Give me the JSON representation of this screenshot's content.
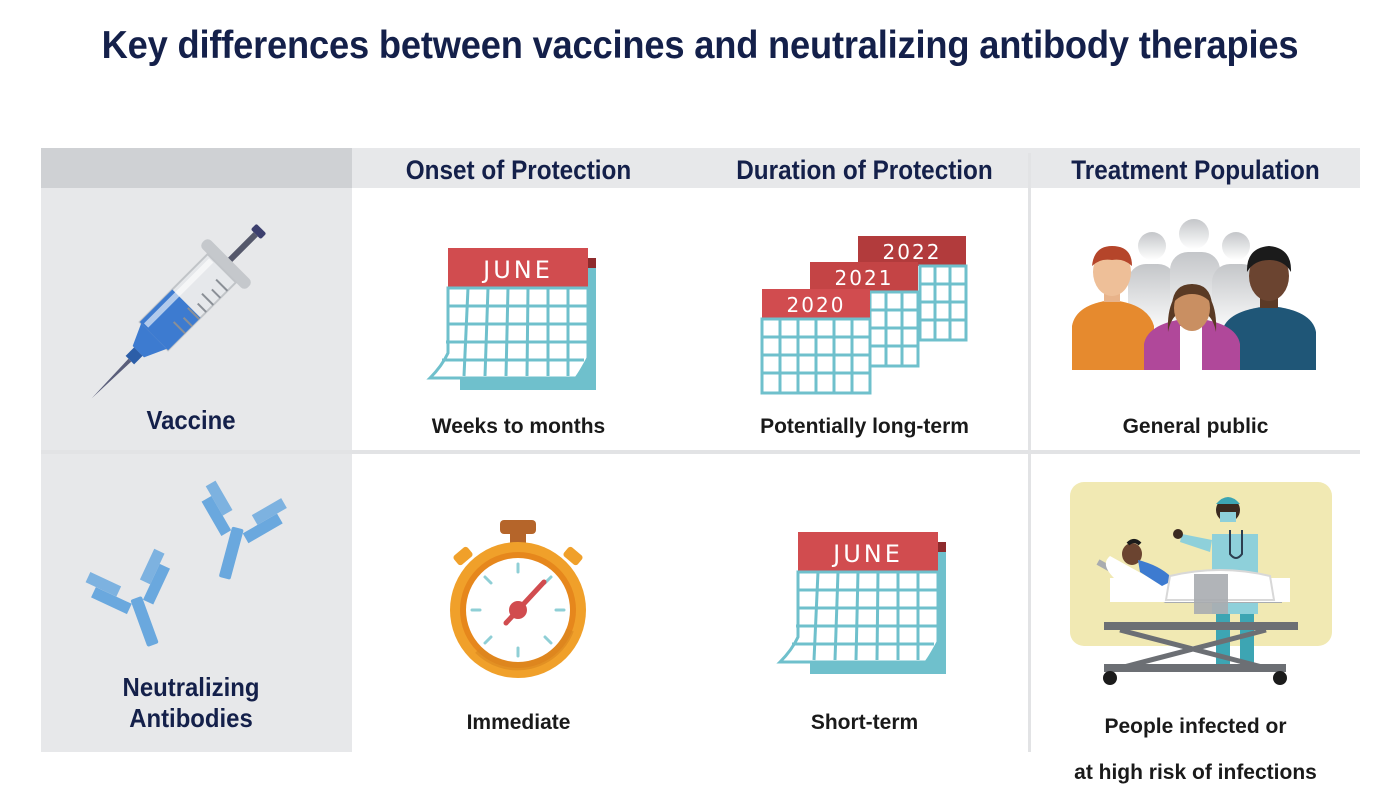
{
  "title": "Key differences between vaccines and neutralizing antibody therapies",
  "columns": [
    "Onset of Protection",
    "Duration of Protection",
    "Treatment Population"
  ],
  "rows": [
    {
      "label": "Vaccine",
      "onset": "Weeks to months",
      "duration": "Potentially long-term",
      "population": "General public",
      "calendar_month": "JUNE",
      "calendar_years": [
        "2020",
        "2021",
        "2022"
      ]
    },
    {
      "label": "Neutralizing\nAntibodies",
      "label_line1": "Neutralizing",
      "label_line2": "Antibodies",
      "onset": "Immediate",
      "duration": "Short-term",
      "population_line1": "People infected or",
      "population_line2": "at high risk of infections",
      "calendar_month": "JUNE"
    }
  ],
  "icons": {
    "vaccine": "syringe-icon",
    "antibodies": "antibody-icon",
    "onset_vaccine": "calendar-icon",
    "duration_vaccine": "multi-year-calendar-icon",
    "population_vaccine": "people-group-icon",
    "onset_antibody": "stopwatch-icon",
    "duration_antibody": "calendar-icon",
    "population_antibody": "hospital-bed-icon"
  },
  "colors": {
    "title": "#14204a",
    "calendar_header": "#d14c4f",
    "calendar_grid": "#6fc0cc",
    "header_band": "#e7e8ea",
    "stopwatch": "#f0a02a"
  }
}
